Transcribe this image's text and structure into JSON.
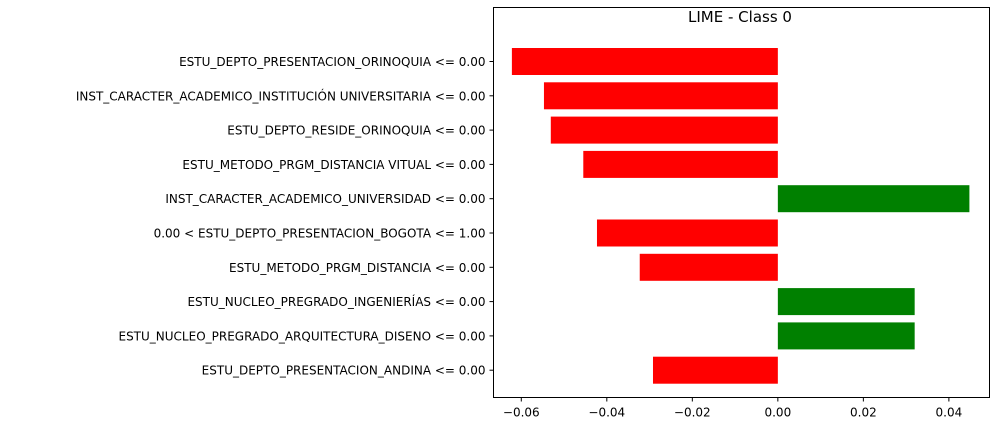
{
  "chart_data": {
    "type": "bar",
    "orientation": "horizontal",
    "title": "LIME - Class 0",
    "xlabel": "",
    "ylabel": "",
    "xlim": [
      -0.0665,
      0.0495
    ],
    "xticks": [
      "−0.06",
      "−0.04",
      "−0.02",
      "0.00",
      "0.02",
      "0.04"
    ],
    "xtick_values": [
      -0.06,
      -0.04,
      -0.02,
      0.0,
      0.02,
      0.04
    ],
    "grid": false,
    "legend": "none",
    "categories": [
      "ESTU_DEPTO_PRESENTACION_ORINOQUIA <= 0.00",
      "INST_CARACTER_ACADEMICO_INSTITUCIÓN UNIVERSITARIA <= 0.00",
      "ESTU_DEPTO_RESIDE_ORINOQUIA <= 0.00",
      "ESTU_METODO_PRGM_DISTANCIA VITUAL <= 0.00",
      "INST_CARACTER_ACADEMICO_UNIVERSIDAD <= 0.00",
      "0.00 < ESTU_DEPTO_PRESENTACION_BOGOTA <= 1.00",
      "ESTU_METODO_PRGM_DISTANCIA <= 0.00",
      "ESTU_NUCLEO_PREGRADO_INGENIERÍAS <= 0.00",
      "ESTU_NUCLEO_PREGRADO_ARQUITECTURA_DISENO <= 0.00",
      "ESTU_DEPTO_PRESENTACION_ANDINA <= 0.00"
    ],
    "values": [
      -0.0622,
      -0.0547,
      -0.0531,
      -0.0455,
      0.0448,
      -0.0423,
      -0.0323,
      0.032,
      0.032,
      -0.0292
    ],
    "colors": {
      "positive": "#008000",
      "negative": "#ff0000"
    }
  }
}
